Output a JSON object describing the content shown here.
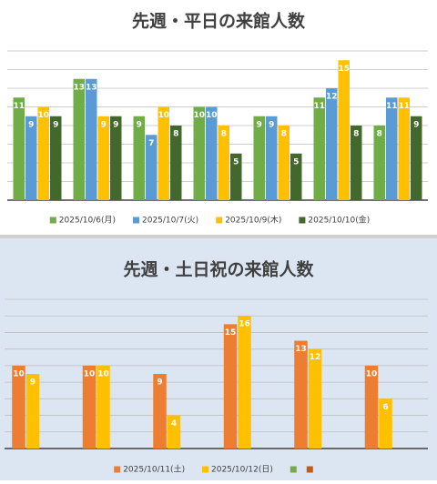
{
  "chart_data": [
    {
      "type": "bar",
      "title": "先週・平日の来館人数",
      "categories": [
        null,
        null,
        null,
        null,
        null,
        null,
        null
      ],
      "series": [
        {
          "name": "2025/10/6(月)",
          "color": "#70ad47",
          "values": [
            11,
            13,
            9,
            10,
            9,
            11,
            8
          ]
        },
        {
          "name": "2025/10/7(火)",
          "color": "#5b9bd5",
          "values": [
            9,
            13,
            7,
            10,
            9,
            12,
            11
          ]
        },
        {
          "name": "2025/10/9(木)",
          "color": "#ffc000",
          "values": [
            10,
            9,
            10,
            8,
            8,
            15,
            11
          ]
        },
        {
          "name": "2025/10/10(金)",
          "color": "#43682b",
          "values": [
            9,
            9,
            8,
            5,
            5,
            8,
            9
          ]
        }
      ],
      "ylim": [
        0,
        16
      ],
      "yticks": [
        0,
        2,
        4,
        6,
        8,
        10,
        12,
        14,
        16
      ],
      "grid": true,
      "legend": "bottom"
    },
    {
      "type": "bar",
      "title": "先週・土日祝の来館人数",
      "categories": [
        null,
        null,
        null,
        null,
        null,
        null
      ],
      "series": [
        {
          "name": "2025/10/11(土)",
          "color": "#ed7d31",
          "values": [
            10,
            10,
            9,
            15,
            13,
            10
          ]
        },
        {
          "name": "2025/10/12(日)",
          "color": "#ffc000",
          "values": [
            9,
            10,
            4,
            16,
            12,
            6
          ]
        },
        {
          "name": null,
          "color": "#70ad47",
          "values": [
            null,
            null,
            null,
            null,
            null,
            null
          ]
        },
        {
          "name": null,
          "color": "#c55a11",
          "values": [
            null,
            null,
            null,
            null,
            null,
            null
          ]
        }
      ],
      "ylim": [
        0,
        18
      ],
      "yticks": [
        0,
        2,
        4,
        6,
        8,
        10,
        12,
        14,
        16,
        18
      ],
      "grid": true,
      "legend": "bottom"
    }
  ]
}
